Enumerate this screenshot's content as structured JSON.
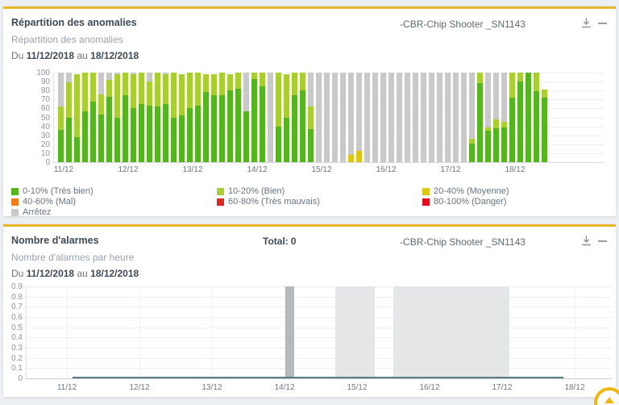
{
  "colors": {
    "accent": "#e8b62b",
    "page_bg": "#eceff3",
    "panel_bg": "#ffffff",
    "region_dark": "#b6b9bc",
    "region_light": "#e4e6e8"
  },
  "anomalies": {
    "title": "Répartition des anomalies",
    "subtitle": "Répartition des anomalies",
    "date_prefix": "Du",
    "date_start": "11/12/2018",
    "date_mid": "au",
    "date_end": "18/12/2018",
    "device": "-CBR-Chip Shooter _SN1143"
  },
  "alarms": {
    "title": "Nombre d'alarmes",
    "total_label": "Total:",
    "total_value": "0",
    "subtitle": "Nombre d'alarmes par heure",
    "date_prefix": "Du",
    "date_start": "11/12/2018",
    "date_mid": "au",
    "date_end": "18/12/2018",
    "device": "-CBR-Chip Shooter _SN1143"
  },
  "legend": [
    {
      "label": "0-10% (Très bien)",
      "color": "#54b51e",
      "col": 0
    },
    {
      "label": "10-20% (Bien)",
      "color": "#a8ce32",
      "col": 1
    },
    {
      "label": "20-40% (Moyenne)",
      "color": "#dcc513",
      "col": 2
    },
    {
      "label": "40-60% (Mal)",
      "color": "#f07c1c",
      "col": 0
    },
    {
      "label": "60-80% (Très mauvais)",
      "color": "#e0271c",
      "col": 1
    },
    {
      "label": "80-100% (Danger)",
      "color": "#e50b1e",
      "col": 2
    },
    {
      "label": "Arrêtez",
      "color": "#c9c9c9",
      "col": 0
    }
  ],
  "chart_data": [
    {
      "type": "bar",
      "stacked": true,
      "title": "Répartition des anomalies",
      "x_labels": [
        "11/12",
        "12/12",
        "13/12",
        "14/12",
        "15/12",
        "16/12",
        "17/12",
        "18/12"
      ],
      "ylim": [
        0,
        100
      ],
      "ytick_step": 10,
      "series": [
        {
          "name": "0-10% (Très bien)",
          "color": "#54b51e"
        },
        {
          "name": "10-20% (Bien)",
          "color": "#a8ce32"
        },
        {
          "name": "20-40% (Moyenne)",
          "color": "#dcc513"
        },
        {
          "name": "Arrêtez",
          "color": "#c9c9c9"
        }
      ],
      "bars": [
        [
          36,
          26,
          0,
          38
        ],
        [
          50,
          39,
          0,
          11
        ],
        [
          28,
          70,
          0,
          0
        ],
        [
          57,
          43,
          0,
          0
        ],
        [
          68,
          32,
          0,
          0
        ],
        [
          53,
          23,
          0,
          24
        ],
        [
          73,
          19,
          0,
          8
        ],
        [
          50,
          48,
          0,
          2
        ],
        [
          75,
          25,
          0,
          0
        ],
        [
          60,
          38,
          0,
          2
        ],
        [
          65,
          35,
          0,
          0
        ],
        [
          63,
          27,
          0,
          10
        ],
        [
          62,
          38,
          0,
          0
        ],
        [
          65,
          33,
          0,
          2
        ],
        [
          50,
          50,
          0,
          0
        ],
        [
          52,
          46,
          0,
          0
        ],
        [
          60,
          40,
          0,
          0
        ],
        [
          63,
          37,
          0,
          0
        ],
        [
          78,
          20,
          0,
          0
        ],
        [
          75,
          23,
          0,
          0
        ],
        [
          75,
          25,
          0,
          0
        ],
        [
          80,
          18,
          0,
          0
        ],
        [
          82,
          18,
          0,
          0
        ],
        [
          57,
          0,
          0,
          43
        ],
        [
          93,
          7,
          0,
          0
        ],
        [
          85,
          15,
          0,
          0
        ],
        [
          0,
          0,
          0,
          100
        ],
        [
          40,
          60,
          0,
          0
        ],
        [
          50,
          48,
          0,
          0
        ],
        [
          75,
          25,
          0,
          0
        ],
        [
          80,
          20,
          0,
          0
        ],
        [
          37,
          25,
          0,
          38
        ],
        [
          0,
          0,
          0,
          100
        ],
        [
          0,
          0,
          0,
          100
        ],
        [
          0,
          0,
          0,
          100
        ],
        [
          0,
          0,
          0,
          100
        ],
        [
          0,
          0,
          8,
          92
        ],
        [
          0,
          0,
          13,
          87
        ],
        [
          0,
          0,
          0,
          100
        ],
        [
          0,
          0,
          0,
          100
        ],
        [
          0,
          0,
          0,
          100
        ],
        [
          0,
          0,
          0,
          100
        ],
        [
          0,
          0,
          0,
          100
        ],
        [
          0,
          0,
          0,
          100
        ],
        [
          0,
          0,
          0,
          100
        ],
        [
          0,
          0,
          0,
          100
        ],
        [
          0,
          0,
          0,
          100
        ],
        [
          0,
          0,
          0,
          100
        ],
        [
          0,
          0,
          0,
          100
        ],
        [
          0,
          0,
          0,
          100
        ],
        [
          0,
          0,
          0,
          100
        ],
        [
          21,
          5,
          0,
          74
        ],
        [
          88,
          12,
          0,
          0
        ],
        [
          35,
          4,
          0,
          61
        ],
        [
          38,
          10,
          0,
          52
        ],
        [
          39,
          6,
          0,
          55
        ],
        [
          72,
          28,
          0,
          0
        ],
        [
          90,
          10,
          0,
          0
        ],
        [
          100,
          0,
          0,
          0
        ],
        [
          79,
          21,
          0,
          0
        ],
        [
          72,
          9,
          0,
          0
        ]
      ]
    },
    {
      "type": "line",
      "title": "Nombre d'alarmes par heure",
      "total": 0,
      "x_labels": [
        "11/12",
        "12/12",
        "13/12",
        "14/12",
        "15/12",
        "16/12",
        "17/12",
        "18/12"
      ],
      "ylim": [
        0,
        0.9
      ],
      "ytick_step": 0.1,
      "series": [
        {
          "name": "Nombre d'alarmes",
          "color": "#5d7c82",
          "constant_value": 0,
          "start_day": 0.08,
          "end_day": 6.84
        }
      ],
      "shaded_regions": [
        {
          "start_day": 3.01,
          "end_day": 3.13,
          "shade": "dark"
        },
        {
          "start_day": 3.7,
          "end_day": 4.24,
          "shade": "light"
        },
        {
          "start_day": 4.5,
          "end_day": 6.1,
          "shade": "light"
        }
      ]
    }
  ]
}
